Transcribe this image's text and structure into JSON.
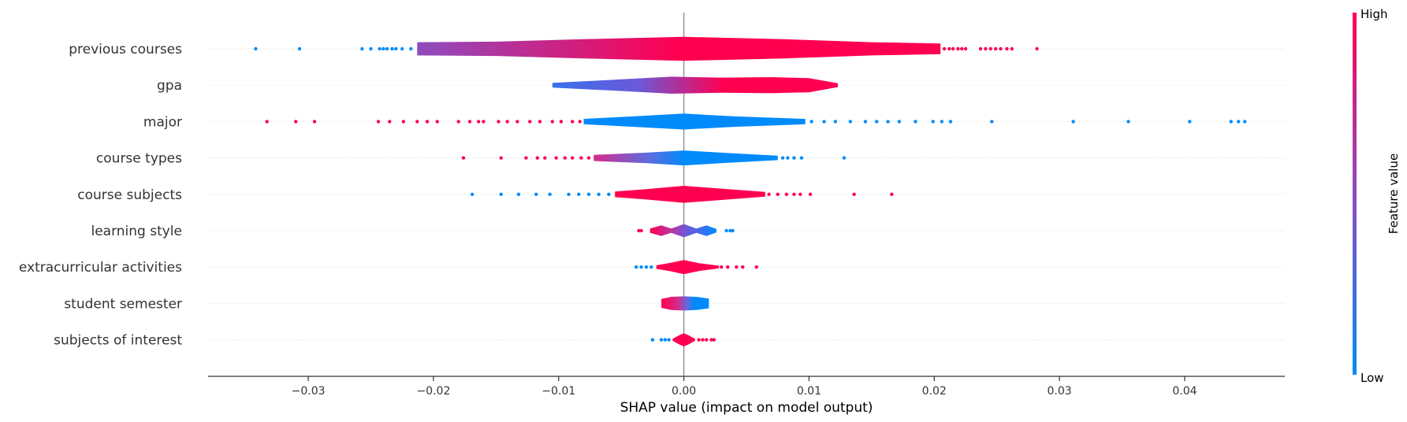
{
  "chart_data": {
    "type": "violin",
    "xlabel": "SHAP value (impact on model output)",
    "xlim": [
      -0.038,
      0.048
    ],
    "xticks": [
      -0.03,
      -0.02,
      -0.01,
      0.0,
      0.01,
      0.02,
      0.03,
      0.04
    ],
    "xtick_labels": [
      "−0.03",
      "−0.02",
      "−0.01",
      "0.00",
      "0.01",
      "0.02",
      "0.03",
      "0.04"
    ],
    "colorbar": {
      "label": "Feature value",
      "high_label": "High",
      "low_label": "Low",
      "low_color": "#008bfb",
      "mid_color": "#8d4cbf",
      "high_color": "#ff0051"
    },
    "features": [
      {
        "name": "previous courses",
        "range": [
          -0.0213,
          0.0205
        ],
        "width": 0.95,
        "shape": [
          [
            -0.0213,
            0.55
          ],
          [
            -0.015,
            0.6
          ],
          [
            -0.008,
            0.8
          ],
          [
            0.0,
            1.0
          ],
          [
            0.008,
            0.8
          ],
          [
            0.015,
            0.55
          ],
          [
            0.0205,
            0.45
          ]
        ],
        "colors": [
          [
            0,
            "#8d4cbf"
          ],
          [
            0.5,
            "#ff0051"
          ],
          [
            1,
            "#ff0051"
          ]
        ],
        "outliers_low": [
          -0.0342,
          -0.0307,
          -0.0257,
          -0.025,
          -0.0243,
          -0.024,
          -0.0237,
          -0.0233,
          -0.023,
          -0.0225,
          -0.0218
        ],
        "outliers_high": [
          0.0208,
          0.0212,
          0.0215,
          0.0219,
          0.0222,
          0.0225,
          0.0237,
          0.0241,
          0.0245,
          0.0249,
          0.0253,
          0.0258,
          0.0262,
          0.0282
        ],
        "low_color": "#008bfb",
        "high_color": "#ff0051"
      },
      {
        "name": "gpa",
        "range": [
          -0.0105,
          0.0123
        ],
        "width": 0.75,
        "shape": [
          [
            -0.0105,
            0.25
          ],
          [
            -0.006,
            0.55
          ],
          [
            -0.001,
            0.9
          ],
          [
            0.003,
            0.8
          ],
          [
            0.007,
            0.85
          ],
          [
            0.01,
            0.75
          ],
          [
            0.0123,
            0.2
          ]
        ],
        "colors": [
          [
            0,
            "#3870ee"
          ],
          [
            0.3,
            "#6a5ad8"
          ],
          [
            0.6,
            "#ff0051"
          ],
          [
            1,
            "#ff0051"
          ]
        ],
        "outliers_low": [],
        "outliers_high": [],
        "low_color": "#008bfb",
        "high_color": "#ff0051"
      },
      {
        "name": "major",
        "range": [
          -0.008,
          0.0097
        ],
        "width": 0.7,
        "shape": [
          [
            -0.008,
            0.3
          ],
          [
            -0.004,
            0.6
          ],
          [
            0.0,
            0.9
          ],
          [
            0.004,
            0.6
          ],
          [
            0.0097,
            0.3
          ]
        ],
        "colors": [
          [
            0,
            "#008bfb"
          ],
          [
            1,
            "#008bfb"
          ]
        ],
        "outliers_low": [
          -0.0333,
          -0.031,
          -0.0295,
          -0.0244,
          -0.0235,
          -0.0224,
          -0.0213,
          -0.0205,
          -0.0197,
          -0.018,
          -0.0171,
          -0.0164,
          -0.016,
          -0.0148,
          -0.0141,
          -0.0133,
          -0.0123,
          -0.0115,
          -0.0105,
          -0.0098,
          -0.0089,
          -0.0083
        ],
        "outliers_high": [
          0.0102,
          0.0112,
          0.0121,
          0.0133,
          0.0145,
          0.0154,
          0.0163,
          0.0172,
          0.0185,
          0.0199,
          0.0206,
          0.0213,
          0.0246,
          0.0311,
          0.0355,
          0.0404,
          0.0437,
          0.0443,
          0.0448
        ],
        "low_color": "#ff0051",
        "high_color": "#008bfb"
      },
      {
        "name": "course types",
        "range": [
          -0.0072,
          0.0075
        ],
        "width": 0.7,
        "shape": [
          [
            -0.0072,
            0.35
          ],
          [
            -0.003,
            0.6
          ],
          [
            0.0,
            0.85
          ],
          [
            0.003,
            0.6
          ],
          [
            0.0075,
            0.25
          ]
        ],
        "colors": [
          [
            0,
            "#d52c8a"
          ],
          [
            0.3,
            "#5c6ce0"
          ],
          [
            0.5,
            "#008bfb"
          ],
          [
            1,
            "#008bfb"
          ]
        ],
        "outliers_low": [
          -0.0176,
          -0.0146,
          -0.0126,
          -0.0117,
          -0.0111,
          -0.0102,
          -0.0095,
          -0.0089,
          -0.0082,
          -0.0076
        ],
        "outliers_high": [
          0.0079,
          0.0083,
          0.0088,
          0.0094,
          0.0128
        ],
        "low_color": "#ff0051",
        "high_color": "#008bfb"
      },
      {
        "name": "course subjects",
        "range": [
          -0.0055,
          0.0065
        ],
        "width": 0.75,
        "shape": [
          [
            -0.0055,
            0.3
          ],
          [
            -0.003,
            0.55
          ],
          [
            0.0,
            0.9
          ],
          [
            0.003,
            0.6
          ],
          [
            0.0065,
            0.25
          ]
        ],
        "colors": [
          [
            0,
            "#ff0051"
          ],
          [
            1,
            "#ff0051"
          ]
        ],
        "outliers_low": [
          -0.0169,
          -0.0146,
          -0.0132,
          -0.0118,
          -0.0107,
          -0.0092,
          -0.0084,
          -0.0076,
          -0.0068,
          -0.006
        ],
        "outliers_high": [
          0.0068,
          0.0075,
          0.0082,
          0.0088,
          0.0093,
          0.0101,
          0.0136,
          0.0166
        ],
        "low_color": "#008bfb",
        "high_color": "#ff0051"
      },
      {
        "name": "learning style",
        "range": [
          -0.0027,
          0.0026
        ],
        "width": 0.7,
        "shape": [
          [
            -0.0027,
            0.25
          ],
          [
            -0.0018,
            0.6
          ],
          [
            -0.001,
            0.25
          ],
          [
            0.0,
            0.75
          ],
          [
            0.001,
            0.25
          ],
          [
            0.0018,
            0.6
          ],
          [
            0.0026,
            0.2
          ]
        ],
        "colors": [
          [
            0,
            "#ff0051"
          ],
          [
            0.35,
            "#b23aa8"
          ],
          [
            0.55,
            "#6a5ad8"
          ],
          [
            0.8,
            "#3870ee"
          ],
          [
            1,
            "#008bfb"
          ]
        ],
        "outliers_low": [
          -0.0036,
          -0.0034
        ],
        "outliers_high": [
          0.0034,
          0.0037,
          0.0039
        ],
        "low_color": "#ff0051",
        "high_color": "#008bfb"
      },
      {
        "name": "extracurricular activities",
        "range": [
          -0.0022,
          0.0028
        ],
        "width": 0.7,
        "shape": [
          [
            -0.0022,
            0.2
          ],
          [
            -0.001,
            0.5
          ],
          [
            0.0,
            0.8
          ],
          [
            0.0012,
            0.45
          ],
          [
            0.0028,
            0.15
          ]
        ],
        "colors": [
          [
            0,
            "#ff0051"
          ],
          [
            1,
            "#ff0051"
          ]
        ],
        "outliers_low": [
          -0.0038,
          -0.0034,
          -0.003,
          -0.0026
        ],
        "outliers_high": [
          0.003,
          0.0035,
          0.0042,
          0.0047,
          0.0058
        ],
        "low_color": "#008bfb",
        "high_color": "#ff0051"
      },
      {
        "name": "student semester",
        "range": [
          -0.0018,
          0.002
        ],
        "width": 0.7,
        "shape": [
          [
            -0.0018,
            0.5
          ],
          [
            -0.001,
            0.75
          ],
          [
            0.0,
            0.8
          ],
          [
            0.001,
            0.75
          ],
          [
            0.002,
            0.55
          ]
        ],
        "colors": [
          [
            0,
            "#ff0051"
          ],
          [
            0.35,
            "#d52c8a"
          ],
          [
            0.55,
            "#5c6ce0"
          ],
          [
            0.7,
            "#008bfb"
          ],
          [
            1,
            "#008bfb"
          ]
        ],
        "outliers_low": [],
        "outliers_high": [],
        "low_color": "#ff0051",
        "high_color": "#008bfb"
      },
      {
        "name": "subjects of interest",
        "range": [
          -0.0009,
          0.0009
        ],
        "width": 0.7,
        "shape": [
          [
            -0.0009,
            0.1
          ],
          [
            -0.0004,
            0.5
          ],
          [
            0.0,
            0.75
          ],
          [
            0.0004,
            0.5
          ],
          [
            0.0009,
            0.1
          ]
        ],
        "colors": [
          [
            0,
            "#ff0051"
          ],
          [
            1,
            "#ff0051"
          ]
        ],
        "outliers_low": [
          -0.0025,
          -0.0018,
          -0.0015,
          -0.0012
        ],
        "outliers_high": [
          0.0012,
          0.0015,
          0.0018,
          0.0022,
          0.0024
        ],
        "low_color": "#008bfb",
        "high_color": "#ff0051"
      }
    ]
  }
}
